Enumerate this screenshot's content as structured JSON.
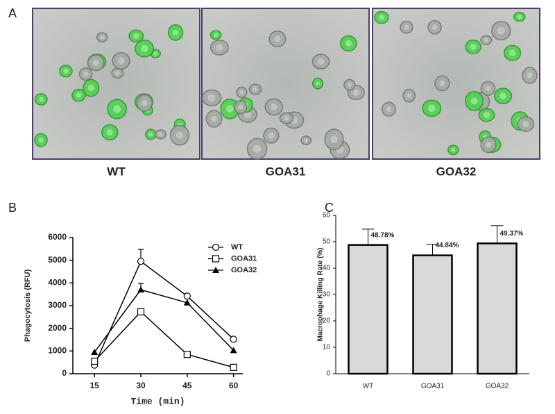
{
  "figure": {
    "panel_label": "A",
    "images": [
      {
        "caption": "WT"
      },
      {
        "caption": "GOA31"
      },
      {
        "caption": "GOA32"
      }
    ]
  },
  "chart_data": [
    {
      "type": "line",
      "panel_label": "B",
      "y_label": "Phagocytosis (RFU)",
      "x_label": "Time (min)",
      "x": [
        15,
        30,
        45,
        60
      ],
      "xlim": [
        8,
        63
      ],
      "xticks": [
        15,
        30,
        45,
        60
      ],
      "ylim": [
        0,
        6000
      ],
      "yticks": [
        0,
        1000,
        2000,
        3000,
        4000,
        5000,
        6000
      ],
      "series": [
        {
          "name": "WT",
          "color": "#000000",
          "marker": "circle",
          "values": [
            380,
            4950,
            3420,
            1520
          ],
          "errors": [
            null,
            530,
            null,
            null
          ]
        },
        {
          "name": "GOA31",
          "color": "#000000",
          "marker": "square",
          "values": [
            550,
            2730,
            850,
            280
          ],
          "errors": [
            null,
            null,
            null,
            null
          ]
        },
        {
          "name": "GOA32",
          "color": "#000000",
          "marker": "triangle",
          "values": [
            950,
            3700,
            3130,
            1030
          ],
          "errors": [
            null,
            280,
            null,
            null
          ]
        }
      ],
      "legend": "top-right"
    },
    {
      "type": "bar",
      "panel_label": "C",
      "y_label": "Macrophage Killing Rate (%)",
      "categories": [
        "WT",
        "GOA31",
        "GOA32"
      ],
      "values": [
        48.78,
        44.84,
        49.37
      ],
      "value_labels": [
        "48.78%",
        "44.84%",
        "49.37%"
      ],
      "errors": [
        6,
        4.2,
        6.7
      ],
      "color": "#d9d9d9",
      "ylim": [
        0,
        60
      ],
      "yticks": [
        0,
        10,
        20,
        30,
        40,
        50,
        60
      ]
    }
  ]
}
